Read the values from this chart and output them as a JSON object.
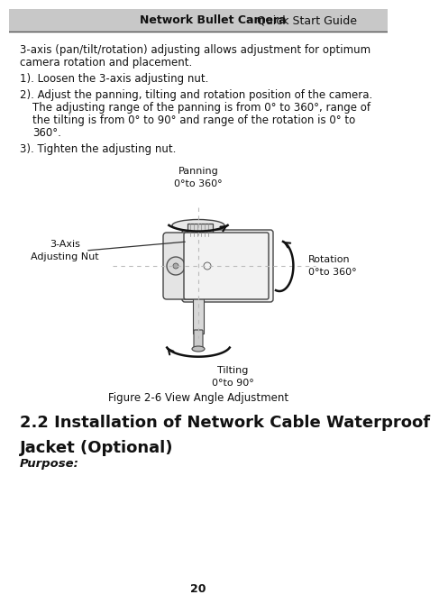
{
  "title_bold": "Network Bullet Camera",
  "title_light": " · Quick Start Guide",
  "bg_color": "#ffffff",
  "header_bg": "#c8c8c8",
  "body_line1": "3-axis (pan/tilt/rotation) adjusting allows adjustment for optimum",
  "body_line2": "camera rotation and placement.",
  "step1": "1). Loosen the 3-axis adjusting nut.",
  "step2_a": "2). Adjust the panning, tilting and rotation position of the camera.",
  "step2_b": "    The adjusting range of the panning is from 0° to 360°, range of",
  "step2_c": "    the tilting is from 0° to 90° and range of the rotation is 0° to",
  "step2_d": "    360°.",
  "step3": "3). Tighten the adjusting nut.",
  "label_panning": "Panning\n0°to 360°",
  "label_rotation": "Rotation\n0°to 360°",
  "label_tilting": "Tilting\n0°to 90°",
  "label_nut": "3-Axis\nAdjusting Nut",
  "figure_caption": "Figure 2-6 View Angle Adjustment",
  "section_line1": "2.2 Installation of Network Cable Waterproof",
  "section_line2": "Jacket (Optional)",
  "purpose_label": "Purpose:",
  "page_number": "20",
  "text_color": "#111111",
  "header_line_color": "#555555"
}
